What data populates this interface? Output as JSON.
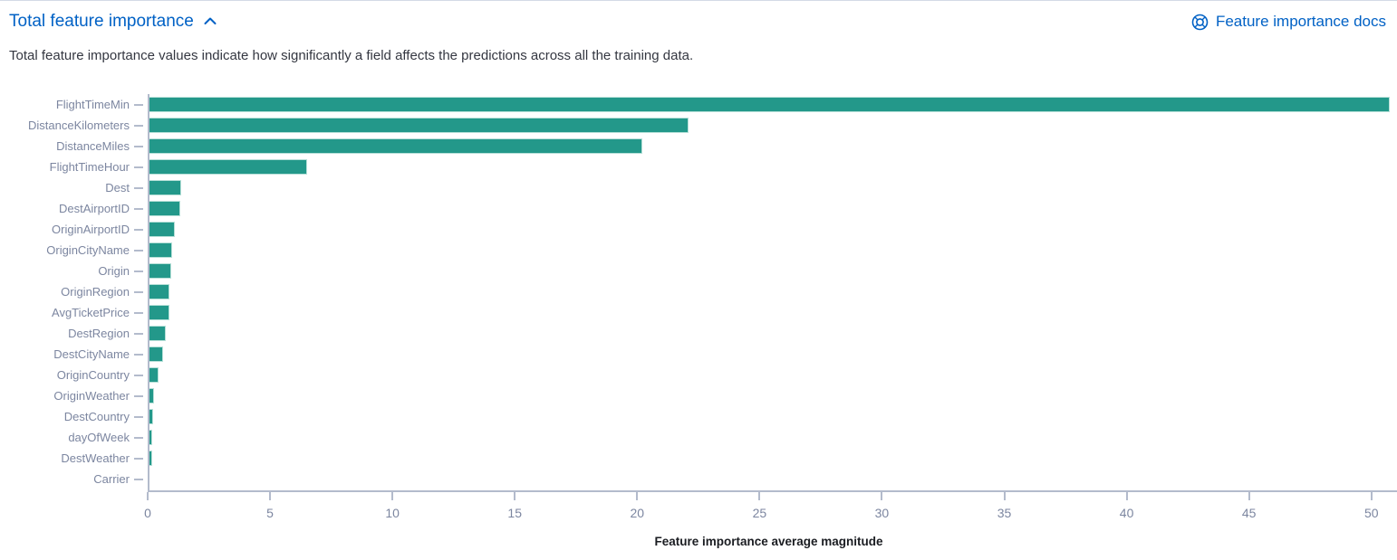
{
  "header": {
    "title": "Total feature importance",
    "collapse_icon": "chevron-up-icon",
    "docs_link_label": "Feature importance docs",
    "docs_icon": "life-ring-help-icon"
  },
  "description": "Total feature importance values indicate how significantly a field affects the predictions across all the training data.",
  "colors": {
    "link": "#0061c5",
    "bar": "#23988a",
    "bar_stroke": "#b7e0d8",
    "axis_line": "#b3bbcc",
    "axis_text": "#7c86a0",
    "body_text": "#343741",
    "axis_title_text": "#1a1c21"
  },
  "chart_data": {
    "type": "bar",
    "orientation": "horizontal",
    "title": "Total feature importance",
    "xlabel": "Feature importance average magnitude",
    "ylabel": "",
    "xlim": [
      0,
      50.75
    ],
    "x_ticks": [
      0,
      5,
      10,
      15,
      20,
      25,
      30,
      35,
      40,
      45,
      50
    ],
    "grid": false,
    "legend": false,
    "categories": [
      "FlightTimeMin",
      "DistanceKilometers",
      "DistanceMiles",
      "FlightTimeHour",
      "Dest",
      "DestAirportID",
      "OriginAirportID",
      "OriginCityName",
      "Origin",
      "OriginRegion",
      "AvgTicketPrice",
      "DestRegion",
      "DestCityName",
      "OriginCountry",
      "OriginWeather",
      "DestCountry",
      "dayOfWeek",
      "DestWeather",
      "Carrier"
    ],
    "values": [
      50.75,
      22.1,
      20.2,
      6.5,
      1.37,
      1.34,
      1.1,
      0.99,
      0.96,
      0.9,
      0.87,
      0.73,
      0.63,
      0.46,
      0.25,
      0.22,
      0.2,
      0.17,
      0.07
    ]
  }
}
